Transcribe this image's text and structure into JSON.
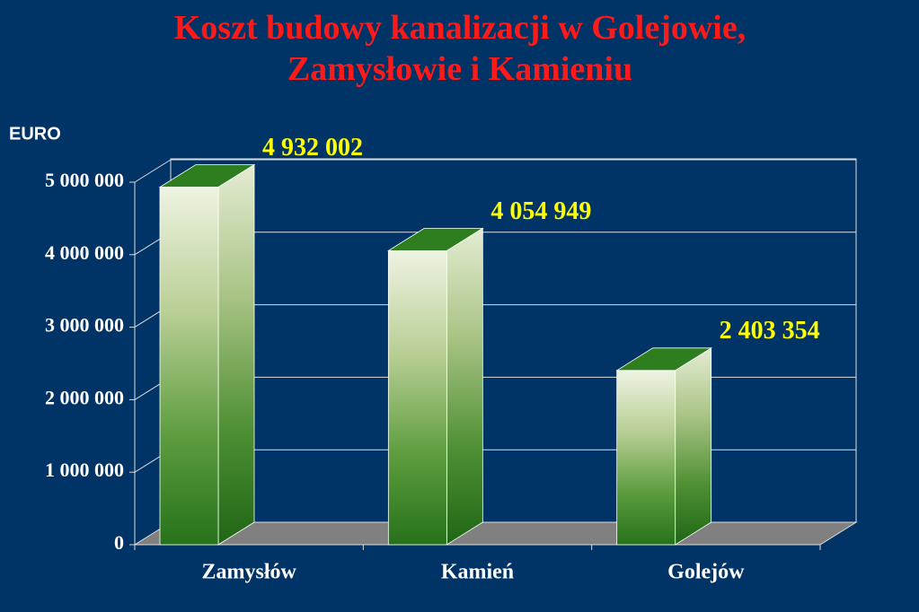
{
  "chart_data": {
    "type": "bar3d",
    "title": "Koszt budowy kanalizacji w Golejowie, Zamysłowie i Kamieniu",
    "y_label": "EURO",
    "categories": [
      "Zamysłów",
      "Kamień",
      "Golejów"
    ],
    "values": [
      4932002,
      4054949,
      2403354
    ],
    "value_labels": [
      "4 932 002",
      "4 054 949",
      "2 403 354"
    ],
    "color": "#2e7d1e",
    "ylim": [
      0,
      5000000
    ],
    "yticks": [
      0,
      {
        "value": 1000000,
        "label": "1 000 000"
      },
      {
        "value": 2000000,
        "label": "2 000 000"
      },
      {
        "value": 3000000,
        "label": "3 000 000"
      },
      {
        "value": 4000000,
        "label": "4 000 000"
      },
      {
        "value": 5000000,
        "label": "5 000 000"
      }
    ],
    "grid": true
  }
}
